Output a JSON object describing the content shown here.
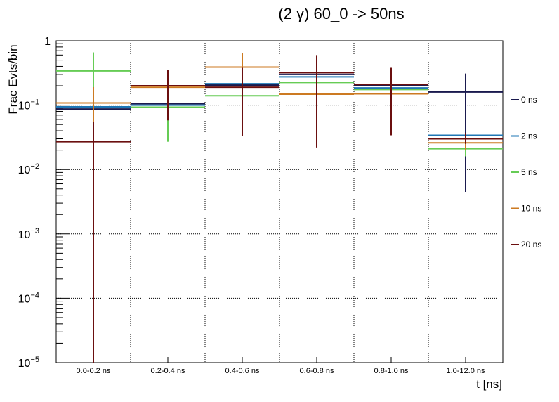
{
  "chart_data": {
    "type": "step",
    "title": "(2 γ) 60_0 -> 50ns",
    "xlabel": "t [ns]",
    "ylabel": "Frac Evts/bin",
    "y_scale": "log",
    "ylim": [
      1e-05,
      1
    ],
    "grid": true,
    "legend_position": "right",
    "categories": [
      "0.0-0.2 ns",
      "0.2-0.4 ns",
      "0.4-0.6 ns",
      "0.6-0.8 ns",
      "0.8-1.0 ns",
      "1.0-12.0 ns"
    ],
    "y_ticks": [
      {
        "base": "1",
        "exp": ""
      },
      {
        "base": "10",
        "exp": "−1"
      },
      {
        "base": "10",
        "exp": "−2"
      },
      {
        "base": "10",
        "exp": "−3"
      },
      {
        "base": "10",
        "exp": "−4"
      },
      {
        "base": "10",
        "exp": "−5"
      }
    ],
    "series": [
      {
        "name": "0 ns",
        "color": "#1a1a4e",
        "values": [
          0.087,
          0.105,
          0.205,
          0.3,
          0.2,
          0.16
        ],
        "err_low": [
          0.055,
          null,
          null,
          null,
          null,
          0.0045
        ],
        "err_high": [
          0.19,
          null,
          null,
          null,
          null,
          0.31
        ]
      },
      {
        "name": "2 ns",
        "color": "#1f77b4",
        "values": [
          0.094,
          0.1,
          0.215,
          0.275,
          0.185,
          0.034
        ],
        "err_low": [
          null,
          null,
          null,
          null,
          null,
          null
        ],
        "err_high": [
          null,
          null,
          null,
          null,
          null,
          null
        ]
      },
      {
        "name": "5 ns",
        "color": "#66cc55",
        "values": [
          0.34,
          0.093,
          0.14,
          0.225,
          0.175,
          0.021
        ],
        "err_low": [
          0.19,
          0.027,
          null,
          null,
          null,
          0.016
        ],
        "err_high": [
          0.66,
          0.16,
          null,
          null,
          null,
          0.028
        ]
      },
      {
        "name": "10 ns",
        "color": "#cc7a22",
        "values": [
          0.108,
          0.19,
          0.39,
          0.148,
          0.15,
          0.026
        ],
        "err_low": [
          0.055,
          null,
          0.2,
          null,
          null,
          0.02
        ],
        "err_high": [
          0.19,
          null,
          0.65,
          null,
          null,
          0.034
        ]
      },
      {
        "name": "20 ns",
        "color": "#6b0f0f",
        "values": [
          0.027,
          0.2,
          0.19,
          0.32,
          0.21,
          0.03
        ],
        "err_low": [
          1e-05,
          0.058,
          0.033,
          0.022,
          0.034,
          0.025
        ],
        "err_high": [
          0.055,
          0.35,
          0.38,
          0.6,
          0.38,
          0.037
        ]
      }
    ]
  }
}
